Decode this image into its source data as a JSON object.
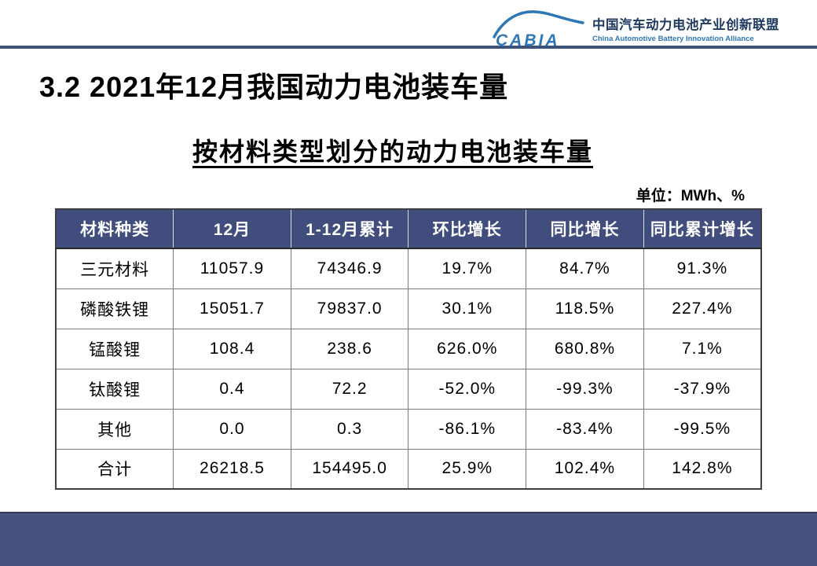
{
  "logo": {
    "brand": "CABIA",
    "org_zh": "中国汽车动力电池产业创新联盟",
    "org_en": "China Automotive Battery Innovation Alliance"
  },
  "slide": {
    "title": "3.2 2021年12月我国动力电池装车量",
    "subtitle": "按材料类型划分的动力电池装车量",
    "unit_label": "单位：MWh、%"
  },
  "table": {
    "headers": [
      "材料种类",
      "12月",
      "1-12月累计",
      "环比增长",
      "同比增长",
      "同比累计增长"
    ],
    "rows": [
      [
        "三元材料",
        "11057.9",
        "74346.9",
        "19.7%",
        "84.7%",
        "91.3%"
      ],
      [
        "磷酸铁锂",
        "15051.7",
        "79837.0",
        "30.1%",
        "118.5%",
        "227.4%"
      ],
      [
        "锰酸锂",
        "108.4",
        "238.6",
        "626.0%",
        "680.8%",
        "7.1%"
      ],
      [
        "钛酸锂",
        "0.4",
        "72.2",
        "-52.0%",
        "-99.3%",
        "-37.9%"
      ],
      [
        "其他",
        "0.0",
        "0.3",
        "-86.1%",
        "-83.4%",
        "-99.5%"
      ],
      [
        "合计",
        "26218.5",
        "154495.0",
        "25.9%",
        "102.4%",
        "142.8%"
      ]
    ]
  },
  "chart_data": {
    "type": "table",
    "title": "按材料类型划分的动力电池装车量",
    "unit": "MWh、%",
    "columns": [
      "材料种类",
      "12月",
      "1-12月累计",
      "环比增长",
      "同比增长",
      "同比累计增长"
    ],
    "rows": [
      {
        "material": "三元材料",
        "dec": 11057.9,
        "ytd": 74346.9,
        "mom_pct": 19.7,
        "yoy_pct": 84.7,
        "yoy_ytd_pct": 91.3
      },
      {
        "material": "磷酸铁锂",
        "dec": 15051.7,
        "ytd": 79837.0,
        "mom_pct": 30.1,
        "yoy_pct": 118.5,
        "yoy_ytd_pct": 227.4
      },
      {
        "material": "锰酸锂",
        "dec": 108.4,
        "ytd": 238.6,
        "mom_pct": 626.0,
        "yoy_pct": 680.8,
        "yoy_ytd_pct": 7.1
      },
      {
        "material": "钛酸锂",
        "dec": 0.4,
        "ytd": 72.2,
        "mom_pct": -52.0,
        "yoy_pct": -99.3,
        "yoy_ytd_pct": -37.9
      },
      {
        "material": "其他",
        "dec": 0.0,
        "ytd": 0.3,
        "mom_pct": -86.1,
        "yoy_pct": -83.4,
        "yoy_ytd_pct": -99.5
      },
      {
        "material": "合计",
        "dec": 26218.5,
        "ytd": 154495.0,
        "mom_pct": 25.9,
        "yoy_pct": 102.4,
        "yoy_ytd_pct": 142.8
      }
    ]
  },
  "colors": {
    "header_bg": "#414D7D",
    "footer_bg": "#47527F",
    "divider_blue": "#3B5378",
    "logo_blue": "#2E77B5",
    "org_zh_color": "#1F3A60"
  }
}
